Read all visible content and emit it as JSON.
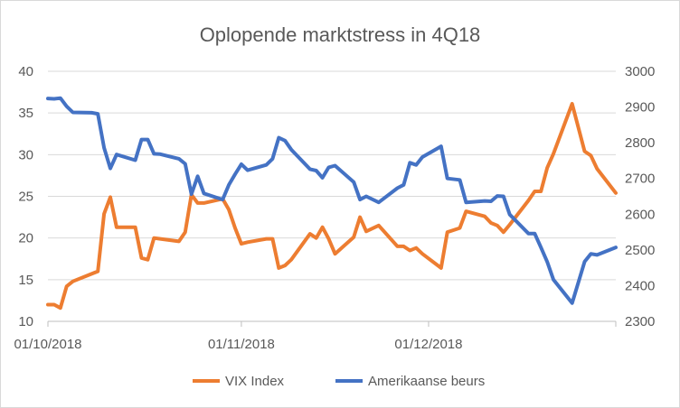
{
  "chart_data": {
    "type": "line",
    "title": "Oplopende marktstress in 4Q18",
    "x_tick_labels": [
      "01/10/2018",
      "01/11/2018",
      "01/12/2018"
    ],
    "x_ticks": [
      "2018-10-01",
      "2018-11-01",
      "2018-12-01"
    ],
    "xlim": [
      "2018-10-01",
      "2018-12-31"
    ],
    "y_left": {
      "ticks": [
        10,
        15,
        20,
        25,
        30,
        35,
        40
      ],
      "ylim": [
        10,
        40
      ]
    },
    "y_right": {
      "ticks": [
        2300,
        2400,
        2500,
        2600,
        2700,
        2800,
        2900,
        3000
      ],
      "ylim": [
        2300,
        3000
      ]
    },
    "grid": "horizontal",
    "legend_position": "bottom",
    "series": [
      {
        "name": "VIX Index",
        "axis": "left",
        "color": "#ED7D31",
        "points": [
          [
            "2018-10-01",
            12.0
          ],
          [
            "2018-10-02",
            12.0
          ],
          [
            "2018-10-03",
            11.6
          ],
          [
            "2018-10-04",
            14.2
          ],
          [
            "2018-10-05",
            14.8
          ],
          [
            "2018-10-08",
            15.7
          ],
          [
            "2018-10-09",
            16.0
          ],
          [
            "2018-10-10",
            22.9
          ],
          [
            "2018-10-11",
            24.9
          ],
          [
            "2018-10-12",
            21.3
          ],
          [
            "2018-10-15",
            21.3
          ],
          [
            "2018-10-16",
            17.6
          ],
          [
            "2018-10-17",
            17.4
          ],
          [
            "2018-10-18",
            20.0
          ],
          [
            "2018-10-19",
            19.9
          ],
          [
            "2018-10-22",
            19.6
          ],
          [
            "2018-10-23",
            20.7
          ],
          [
            "2018-10-24",
            25.2
          ],
          [
            "2018-10-25",
            24.2
          ],
          [
            "2018-10-26",
            24.2
          ],
          [
            "2018-10-29",
            24.7
          ],
          [
            "2018-10-30",
            23.4
          ],
          [
            "2018-10-31",
            21.2
          ],
          [
            "2018-11-01",
            19.3
          ],
          [
            "2018-11-02",
            19.5
          ],
          [
            "2018-11-05",
            19.9
          ],
          [
            "2018-11-06",
            19.9
          ],
          [
            "2018-11-07",
            16.4
          ],
          [
            "2018-11-08",
            16.7
          ],
          [
            "2018-11-09",
            17.4
          ],
          [
            "2018-11-12",
            20.5
          ],
          [
            "2018-11-13",
            20.0
          ],
          [
            "2018-11-14",
            21.3
          ],
          [
            "2018-11-15",
            19.9
          ],
          [
            "2018-11-16",
            18.1
          ],
          [
            "2018-11-19",
            20.1
          ],
          [
            "2018-11-20",
            22.5
          ],
          [
            "2018-11-21",
            20.8
          ],
          [
            "2018-11-23",
            21.5
          ],
          [
            "2018-11-26",
            19.0
          ],
          [
            "2018-11-27",
            19.0
          ],
          [
            "2018-11-28",
            18.5
          ],
          [
            "2018-11-29",
            18.8
          ],
          [
            "2018-11-30",
            18.1
          ],
          [
            "2018-12-03",
            16.4
          ],
          [
            "2018-12-04",
            20.7
          ],
          [
            "2018-12-06",
            21.2
          ],
          [
            "2018-12-07",
            23.2
          ],
          [
            "2018-12-10",
            22.6
          ],
          [
            "2018-12-11",
            21.8
          ],
          [
            "2018-12-12",
            21.5
          ],
          [
            "2018-12-13",
            20.7
          ],
          [
            "2018-12-14",
            21.6
          ],
          [
            "2018-12-17",
            24.5
          ],
          [
            "2018-12-18",
            25.6
          ],
          [
            "2018-12-19",
            25.6
          ],
          [
            "2018-12-20",
            28.4
          ],
          [
            "2018-12-21",
            30.1
          ],
          [
            "2018-12-24",
            36.1
          ],
          [
            "2018-12-26",
            30.4
          ],
          [
            "2018-12-27",
            29.9
          ],
          [
            "2018-12-28",
            28.3
          ],
          [
            "2018-12-31",
            25.4
          ]
        ]
      },
      {
        "name": "Amerikaanse beurs",
        "axis": "right",
        "color": "#4472C4",
        "points": [
          [
            "2018-10-01",
            2924
          ],
          [
            "2018-10-02",
            2923
          ],
          [
            "2018-10-03",
            2925
          ],
          [
            "2018-10-04",
            2902
          ],
          [
            "2018-10-05",
            2885
          ],
          [
            "2018-10-08",
            2884
          ],
          [
            "2018-10-09",
            2881
          ],
          [
            "2018-10-10",
            2786
          ],
          [
            "2018-10-11",
            2728
          ],
          [
            "2018-10-12",
            2767
          ],
          [
            "2018-10-15",
            2751
          ],
          [
            "2018-10-16",
            2809
          ],
          [
            "2018-10-17",
            2809
          ],
          [
            "2018-10-18",
            2769
          ],
          [
            "2018-10-19",
            2768
          ],
          [
            "2018-10-22",
            2755
          ],
          [
            "2018-10-23",
            2741
          ],
          [
            "2018-10-24",
            2656
          ],
          [
            "2018-10-25",
            2706
          ],
          [
            "2018-10-26",
            2658
          ],
          [
            "2018-10-29",
            2641
          ],
          [
            "2018-10-30",
            2682
          ],
          [
            "2018-10-31",
            2712
          ],
          [
            "2018-11-01",
            2740
          ],
          [
            "2018-11-02",
            2723
          ],
          [
            "2018-11-05",
            2738
          ],
          [
            "2018-11-06",
            2755
          ],
          [
            "2018-11-07",
            2814
          ],
          [
            "2018-11-08",
            2806
          ],
          [
            "2018-11-09",
            2781
          ],
          [
            "2018-11-12",
            2726
          ],
          [
            "2018-11-13",
            2722
          ],
          [
            "2018-11-14",
            2702
          ],
          [
            "2018-11-15",
            2731
          ],
          [
            "2018-11-16",
            2736
          ],
          [
            "2018-11-19",
            2690
          ],
          [
            "2018-11-20",
            2641
          ],
          [
            "2018-11-21",
            2650
          ],
          [
            "2018-11-23",
            2633
          ],
          [
            "2018-11-26",
            2673
          ],
          [
            "2018-11-27",
            2682
          ],
          [
            "2018-11-28",
            2744
          ],
          [
            "2018-11-29",
            2738
          ],
          [
            "2018-11-30",
            2760
          ],
          [
            "2018-12-03",
            2790
          ],
          [
            "2018-12-04",
            2700
          ],
          [
            "2018-12-06",
            2696
          ],
          [
            "2018-12-07",
            2633
          ],
          [
            "2018-12-10",
            2637
          ],
          [
            "2018-12-11",
            2636
          ],
          [
            "2018-12-12",
            2651
          ],
          [
            "2018-12-13",
            2650
          ],
          [
            "2018-12-14",
            2599
          ],
          [
            "2018-12-17",
            2546
          ],
          [
            "2018-12-18",
            2546
          ],
          [
            "2018-12-19",
            2507
          ],
          [
            "2018-12-20",
            2467
          ],
          [
            "2018-12-21",
            2417
          ],
          [
            "2018-12-24",
            2351
          ],
          [
            "2018-12-26",
            2467
          ],
          [
            "2018-12-27",
            2489
          ],
          [
            "2018-12-28",
            2486
          ],
          [
            "2018-12-31",
            2507
          ]
        ]
      }
    ]
  }
}
